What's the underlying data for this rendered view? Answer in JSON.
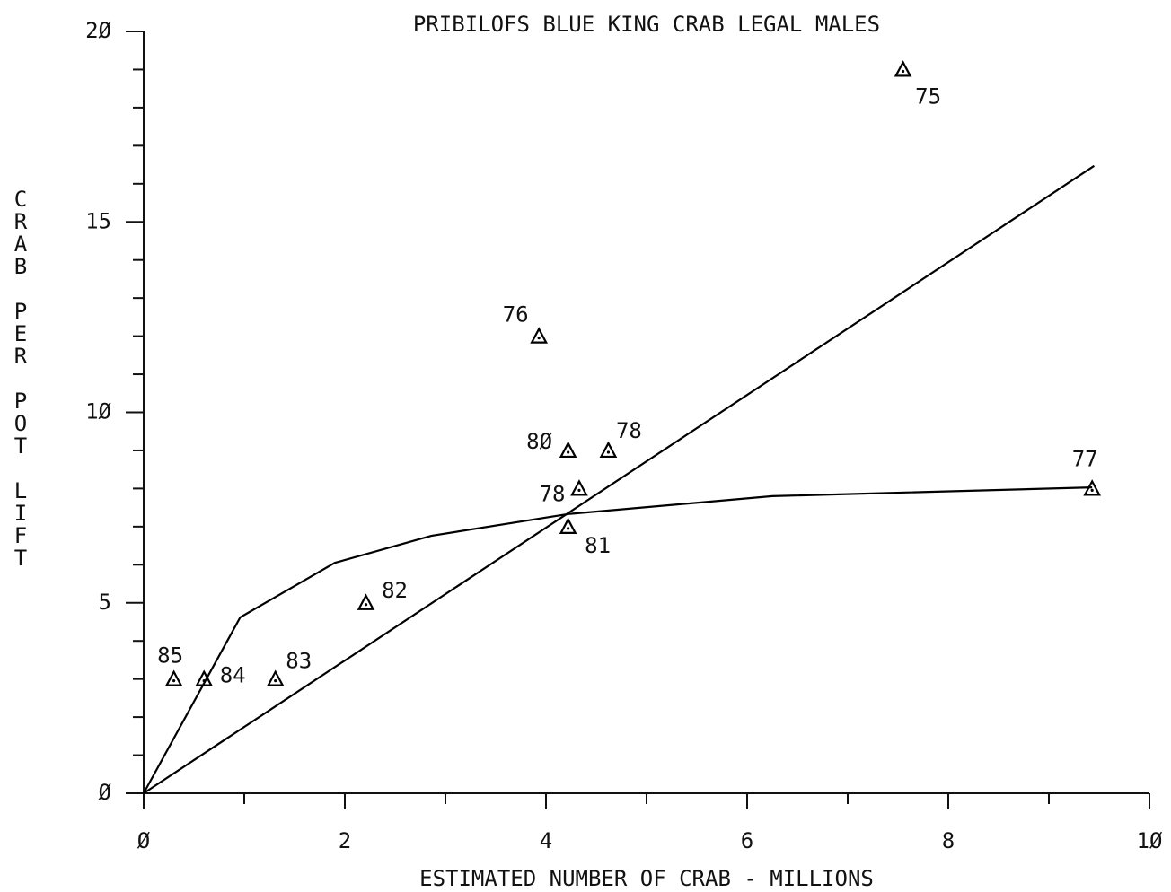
{
  "chart_data": {
    "type": "scatter",
    "title": "PRIBILOFS BLUE KING CRAB LEGAL MALES",
    "xlabel": "ESTIMATED NUMBER OF CRAB - MILLIONS",
    "ylabel": "CRAB PER POT LIFT",
    "xlim": [
      0,
      10
    ],
    "ylim": [
      0,
      20
    ],
    "xticks": [
      {
        "value": 0,
        "label": "Ø"
      },
      2,
      4,
      6,
      8,
      {
        "value": 10,
        "label": "1Ø"
      }
    ],
    "yticks": [
      {
        "value": 0,
        "label": "Ø"
      },
      5,
      {
        "value": 10,
        "label": "1Ø"
      },
      15,
      {
        "value": 20,
        "label": "2Ø"
      }
    ],
    "xminor_ticks": [
      1,
      3,
      5,
      7,
      9
    ],
    "yminor_ticks": [
      1,
      2,
      3,
      4,
      6,
      7,
      8,
      9,
      11,
      12,
      13,
      14,
      16,
      17,
      18,
      19
    ],
    "series": [
      {
        "type": "scatter",
        "color": "#000000",
        "x": [
          7.55,
          3.93,
          4.22,
          4.62,
          4.33,
          4.22,
          9.43,
          2.21,
          1.31,
          0.6,
          0.3
        ],
        "values": [
          19,
          12,
          9,
          9,
          8,
          7,
          8,
          5,
          3,
          3,
          3
        ],
        "labels": [
          "75",
          "76",
          "8Ø",
          "78",
          "78",
          "81",
          "77",
          "82",
          "83",
          "84",
          "85"
        ]
      },
      {
        "type": "line",
        "color": "#000000",
        "x": [
          0,
          9.45
        ],
        "values": [
          0,
          16.47
        ]
      },
      {
        "type": "line",
        "color": "#000000",
        "x": [
          0,
          0.96,
          1.9,
          2.86,
          4.22,
          6.25,
          9.43
        ],
        "values": [
          0,
          4.62,
          6.05,
          6.76,
          7.33,
          7.8,
          8.03
        ]
      }
    ]
  }
}
